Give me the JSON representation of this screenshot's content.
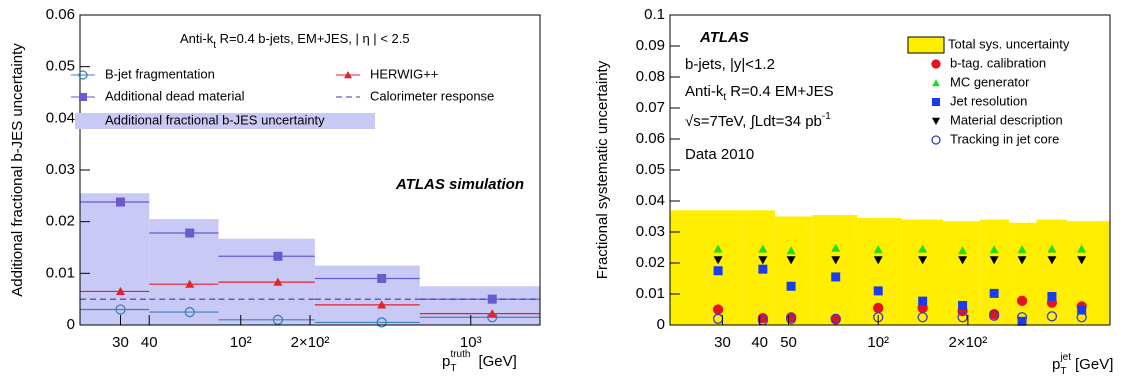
{
  "chart_data": [
    {
      "type": "step",
      "annotation": {
        "pre": "Anti-k",
        "sub": "t",
        "post": " R=0.4 b-jets, EM+JES, | η | < 2.5"
      },
      "label": "ATLAS simulation",
      "y_label": "Additional fractional b-JES uncertainty",
      "x_label": {
        "base": "p",
        "sub": "T",
        "sup": "truth",
        "unit": "[GeV]"
      },
      "log_x": true,
      "xlim": [
        20,
        2000
      ],
      "xticks": [
        30,
        40,
        {
          "value": 100,
          "label": "10²"
        },
        {
          "value": 200,
          "label": "2×10²"
        },
        {
          "value": 1000,
          "label": "10³"
        }
      ],
      "ylim": [
        0,
        0.06
      ],
      "yticks": [
        0,
        0.01,
        0.02,
        0.03,
        0.04,
        0.05,
        0.06
      ],
      "bins": [
        20,
        40,
        80,
        210,
        600,
        2000
      ],
      "x": [
        30,
        60,
        145,
        410,
        1240
      ],
      "series": [
        {
          "name": "Additional fractional b-JES uncertainty",
          "color": "#c9c9f5",
          "style": "band",
          "values": [
            0.0255,
            0.0205,
            0.0167,
            0.0115,
            0.0075
          ]
        },
        {
          "name": "B-jet fragmentation",
          "color": "#3b7fc4",
          "style": "step",
          "marker": "circle-open",
          "values": [
            0.003,
            0.0025,
            0.001,
            0.0005,
            0.0015
          ]
        },
        {
          "name": "HERWIG++",
          "color": "#e3232c",
          "style": "step",
          "marker": "triangle-up",
          "values": [
            0.0065,
            0.0079,
            0.0083,
            0.0039,
            0.0022
          ]
        },
        {
          "name": "Additional dead material",
          "color": "#6a5acd",
          "style": "step",
          "marker": "square",
          "values": [
            0.0238,
            0.0178,
            0.0133,
            0.009,
            0.005
          ]
        },
        {
          "name": "Calorimeter response",
          "color": "#3a3ab0",
          "style": "dashed",
          "values": [
            0.005,
            0.005,
            0.005,
            0.005,
            0.005
          ]
        }
      ]
    },
    {
      "type": "scatter",
      "label": "ATLAS",
      "notes": [
        "b-jets, |y|<1.2",
        "Data 2010"
      ],
      "annotation": {
        "pre": "Anti-k",
        "sub": "t",
        "post": " R=0.4 EM+JES"
      },
      "energy": {
        "pre": "√s=7TeV, ∫Ldt=34 pb",
        "sup": "-1"
      },
      "y_label": "Fractional systematic uncertainty",
      "x_label": {
        "base": "p",
        "sub": "T",
        "sup": "jet",
        "unit": "[GeV]"
      },
      "log_x": true,
      "xlim": [
        20,
        600
      ],
      "xticks": [
        30,
        40,
        50,
        {
          "value": 100,
          "label": "10²"
        },
        {
          "value": 200,
          "label": "2×10²"
        }
      ],
      "ylim": [
        0,
        0.1
      ],
      "yticks": [
        0,
        0.01,
        0.02,
        0.03,
        0.04,
        0.05,
        0.06,
        0.07,
        0.08,
        0.09,
        0.1
      ],
      "bins": [
        20,
        35,
        45,
        60,
        85,
        120,
        165,
        220,
        275,
        340,
        430,
        600
      ],
      "x": [
        29,
        41,
        51,
        72,
        100,
        141,
        192,
        245,
        304,
        383,
        482
      ],
      "series": [
        {
          "name": "Total sys. uncertainty",
          "color": "#ffee00",
          "style": "band",
          "values": [
            0.037,
            0.037,
            0.035,
            0.0355,
            0.0345,
            0.034,
            0.0335,
            0.034,
            0.033,
            0.034,
            0.0335
          ]
        },
        {
          "name": "b-tag. calibration",
          "color": "#e3141e",
          "marker": "circle",
          "values": [
            0.005,
            0.0022,
            0.0025,
            0.0018,
            0.0055,
            0.0055,
            0.0045,
            0.0035,
            0.0078,
            0.0072,
            0.006
          ]
        },
        {
          "name": "MC generator",
          "color": "#22dd22",
          "marker": "triangle-up",
          "values": [
            0.0245,
            0.0245,
            0.024,
            0.0248,
            0.0243,
            0.0245,
            0.024,
            0.0243,
            0.0243,
            0.0245,
            0.0245
          ]
        },
        {
          "name": "Jet resolution",
          "color": "#1a3cf0",
          "marker": "square",
          "values": [
            0.0175,
            0.018,
            0.0125,
            0.0155,
            0.011,
            0.0077,
            0.0063,
            0.0102,
            0.0012,
            0.0092,
            0.0048
          ]
        },
        {
          "name": "Material description",
          "color": "#000000",
          "marker": "triangle-down",
          "values": [
            0.021,
            0.021,
            0.021,
            0.021,
            0.021,
            0.021,
            0.021,
            0.021,
            0.021,
            0.021,
            0.021
          ]
        },
        {
          "name": "Tracking in jet core",
          "color": "#3b3bc8",
          "marker": "circle-open",
          "values": [
            0.002,
            0.0015,
            0.002,
            0.002,
            0.0025,
            0.0025,
            0.0025,
            0.003,
            0.0025,
            0.0028,
            0.0025
          ]
        }
      ]
    }
  ]
}
